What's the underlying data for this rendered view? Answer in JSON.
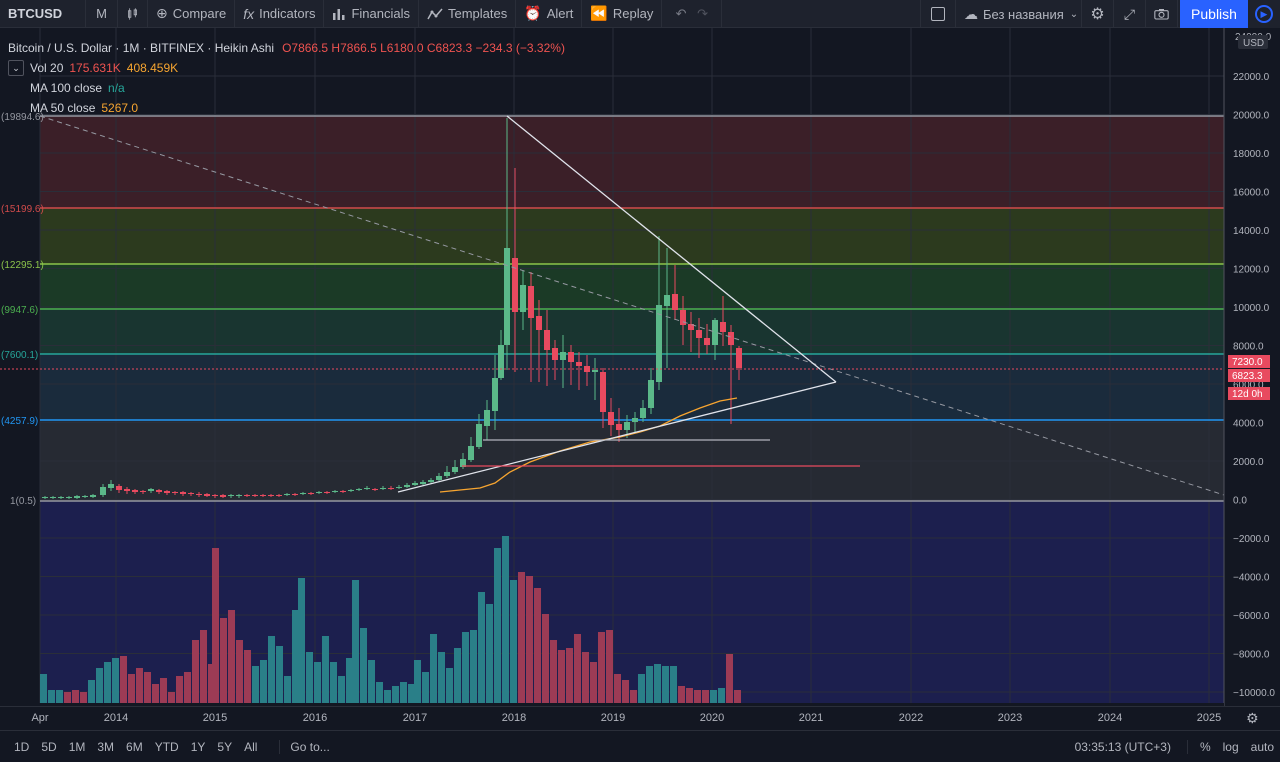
{
  "toolbar": {
    "symbol": "BTCUSD",
    "interval": "M",
    "compare": "Compare",
    "indicators": "Indicators",
    "financials": "Financials",
    "templates": "Templates",
    "alert": "Alert",
    "replay": "Replay",
    "layout_name": "Без названия",
    "publish": "Publish"
  },
  "legend": {
    "title": "Bitcoin / U.S. Dollar · 1M · BITFINEX · Heikin Ashi",
    "ohlc": "O7866.5  H7866.5  L6180.0  C6823.3  −234.3 (−3.32%)",
    "vol_label": "Vol 20",
    "vol_value1": "175.631K",
    "vol_value2": "408.459K",
    "ma100_label": "MA 100 close",
    "ma100_value": "n/a",
    "ma50_label": "MA 50 close",
    "ma50_value": "5267.0"
  },
  "bottom": {
    "ranges": [
      "1D",
      "5D",
      "1M",
      "3M",
      "6M",
      "YTD",
      "1Y",
      "5Y",
      "All"
    ],
    "goto": "Go to...",
    "time": "03:35:13 (UTC+3)",
    "percent": "%",
    "log": "log",
    "auto": "auto"
  },
  "colors": {
    "up": "#5bb889",
    "down": "#e84a5f",
    "background": "#131722"
  },
  "chart_data": {
    "type": "candlestick",
    "price_axis_ticks": [
      "22000.0",
      "20000.0",
      "18000.0",
      "16000.0",
      "14000.0",
      "12000.0",
      "10000.0",
      "8000.0",
      "6000.0",
      "4000.0",
      "2000.0",
      "0.0",
      "−2000.0",
      "−4000.0",
      "−6000.0",
      "−8000.0",
      "−10000.0"
    ],
    "price_axis_top": "24000.0",
    "currency": "USD",
    "time_axis_ticks": [
      "Apr",
      "2014",
      "2015",
      "2016",
      "2017",
      "2018",
      "2019",
      "2020",
      "2021",
      "2022",
      "2023",
      "2024",
      "2025"
    ],
    "price_labels": {
      "price_1": "7230.0",
      "price_2": "6823.3",
      "countdown": "12d 0h"
    },
    "fib_levels": [
      {
        "label": "(19894.6)",
        "value": 19894.6
      },
      {
        "label": "(15199.6)",
        "value": 15199.6
      },
      {
        "label": "(12295.1)",
        "value": 12295.1
      },
      {
        "label": "(9947.6)",
        "value": 9947.6
      },
      {
        "label": "(7600.1)",
        "value": 7600.1
      },
      {
        "label": "(4257.9)",
        "value": 4257.9
      },
      {
        "label": "1(0.5)",
        "value": 0.5
      }
    ]
  }
}
